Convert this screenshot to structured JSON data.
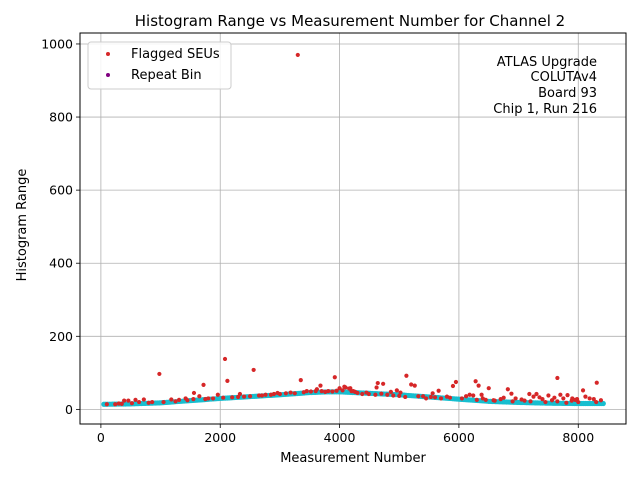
{
  "chart_data": {
    "type": "scatter",
    "title": "Histogram Range vs Measurement Number for Channel 2",
    "xlabel": "Measurement Number",
    "ylabel": "Histogram Range",
    "xlim": [
      -350,
      8800
    ],
    "ylim": [
      -40,
      1030
    ],
    "xticks": [
      0,
      2000,
      4000,
      6000,
      8000
    ],
    "yticks": [
      0,
      200,
      400,
      600,
      800,
      1000
    ],
    "grid": true,
    "legend_position": "top-left",
    "colors": {
      "flagged": "#d62728",
      "repeat": "#800080",
      "baseline": "#17becf",
      "grid": "#b0b0b0"
    },
    "annotation_lines": [
      "ATLAS Upgrade",
      "COLUTAv4",
      "Board 93",
      "Chip 1, Run 216"
    ],
    "baseline_profile": {
      "x": [
        50,
        500,
        1000,
        1500,
        2000,
        2500,
        3000,
        3500,
        3800,
        4000,
        4500,
        5000,
        5500,
        6000,
        6500,
        7000,
        7500,
        8000,
        8430
      ],
      "y": [
        14,
        15,
        18,
        24,
        30,
        35,
        40,
        46,
        48,
        48,
        44,
        40,
        34,
        28,
        22,
        19,
        17,
        16,
        16
      ]
    },
    "series": [
      {
        "name": "Flagged SEUs",
        "points": [
          [
            3300,
            970
          ],
          [
            2080,
            138
          ],
          [
            2560,
            108
          ],
          [
            980,
            97
          ],
          [
            3920,
            88
          ],
          [
            7650,
            86
          ],
          [
            5120,
            92
          ],
          [
            3350,
            80
          ],
          [
            2120,
            78
          ],
          [
            6280,
            77
          ],
          [
            5950,
            75
          ],
          [
            8310,
            73
          ],
          [
            4640,
            72
          ],
          [
            4730,
            70
          ],
          [
            5200,
            68
          ],
          [
            1720,
            67
          ],
          [
            3680,
            65
          ],
          [
            5900,
            64
          ],
          [
            5260,
            65
          ],
          [
            4100,
            60
          ],
          [
            4180,
            58
          ],
          [
            6500,
            58
          ],
          [
            6820,
            55
          ],
          [
            8080,
            52
          ],
          [
            5660,
            51
          ],
          [
            3600,
            50
          ],
          [
            3450,
            50
          ],
          [
            3810,
            50
          ],
          [
            3880,
            49
          ],
          [
            4050,
            52
          ],
          [
            4230,
            50
          ],
          [
            4860,
            48
          ],
          [
            5020,
            46
          ],
          [
            1560,
            45
          ],
          [
            2960,
            45
          ],
          [
            3180,
            46
          ],
          [
            6880,
            43
          ],
          [
            7180,
            42
          ],
          [
            7300,
            42
          ],
          [
            7500,
            38
          ],
          [
            7700,
            40
          ],
          [
            7820,
            39
          ],
          [
            6380,
            40
          ],
          [
            6240,
            38
          ],
          [
            6120,
            36
          ],
          [
            5800,
            35
          ],
          [
            5530,
            34
          ],
          [
            5400,
            36
          ],
          [
            4900,
            38
          ],
          [
            4600,
            40
          ],
          [
            4380,
            42
          ],
          [
            1960,
            40
          ],
          [
            2330,
            42
          ],
          [
            2760,
            40
          ],
          [
            1650,
            36
          ],
          [
            1420,
            30
          ],
          [
            1180,
            27
          ],
          [
            720,
            27
          ],
          [
            390,
            24
          ],
          [
            460,
            24
          ],
          [
            580,
            26
          ],
          [
            1310,
            26
          ],
          [
            1880,
            30
          ],
          [
            8190,
            30
          ],
          [
            8260,
            28
          ],
          [
            8380,
            25
          ],
          [
            7950,
            26
          ],
          [
            7890,
            24
          ],
          [
            7560,
            25
          ],
          [
            7400,
            28
          ],
          [
            7100,
            24
          ],
          [
            6950,
            30
          ],
          [
            6700,
            28
          ],
          [
            6580,
            25
          ],
          [
            6450,
            26
          ],
          [
            6050,
            30
          ],
          [
            5700,
            30
          ],
          [
            5600,
            33
          ],
          [
            5100,
            34
          ],
          [
            5320,
            36
          ],
          [
            4800,
            40
          ],
          [
            4490,
            42
          ],
          [
            4300,
            45
          ],
          [
            3760,
            48
          ],
          [
            3520,
            49
          ],
          [
            3100,
            44
          ],
          [
            2850,
            40
          ],
          [
            2650,
            38
          ],
          [
            2400,
            35
          ],
          [
            2200,
            33
          ],
          [
            1800,
            30
          ],
          [
            1550,
            28
          ],
          [
            860,
            20
          ],
          [
            640,
            20
          ],
          [
            300,
            16
          ],
          [
            240,
            14
          ],
          [
            7250,
            35
          ],
          [
            7350,
            33
          ],
          [
            7600,
            32
          ],
          [
            7750,
            30
          ],
          [
            7980,
            28
          ],
          [
            8120,
            35
          ],
          [
            8000,
            20
          ],
          [
            7800,
            18
          ],
          [
            7650,
            22
          ],
          [
            7450,
            20
          ],
          [
            7200,
            22
          ],
          [
            6900,
            22
          ],
          [
            6600,
            24
          ],
          [
            6300,
            26
          ],
          [
            6180,
            40
          ],
          [
            5850,
            32
          ],
          [
            5450,
            30
          ],
          [
            5000,
            37
          ],
          [
            4700,
            43
          ],
          [
            4450,
            46
          ],
          [
            4200,
            50
          ],
          [
            3950,
            51
          ],
          [
            3700,
            50
          ],
          [
            3400,
            47
          ],
          [
            3000,
            42
          ],
          [
            2700,
            38
          ],
          [
            2500,
            36
          ],
          [
            2300,
            34
          ],
          [
            2050,
            32
          ],
          [
            1750,
            28
          ],
          [
            1450,
            25
          ],
          [
            1250,
            22
          ],
          [
            1050,
            20
          ],
          [
            800,
            18
          ],
          [
            520,
            17
          ],
          [
            350,
            15
          ],
          [
            100,
            14
          ],
          [
            6400,
            30
          ],
          [
            6750,
            32
          ],
          [
            7050,
            27
          ],
          [
            7900,
            30
          ],
          [
            8300,
            20
          ],
          [
            4960,
            52
          ],
          [
            5560,
            44
          ],
          [
            3620,
            55
          ],
          [
            4160,
            57
          ],
          [
            6330,
            65
          ],
          [
            4620,
            60
          ],
          [
            4000,
            58
          ],
          [
            4080,
            62
          ],
          [
            4260,
            48
          ],
          [
            2900,
            42
          ],
          [
            3250,
            44
          ]
        ]
      },
      {
        "name": "Repeat Bin",
        "points": []
      }
    ]
  }
}
